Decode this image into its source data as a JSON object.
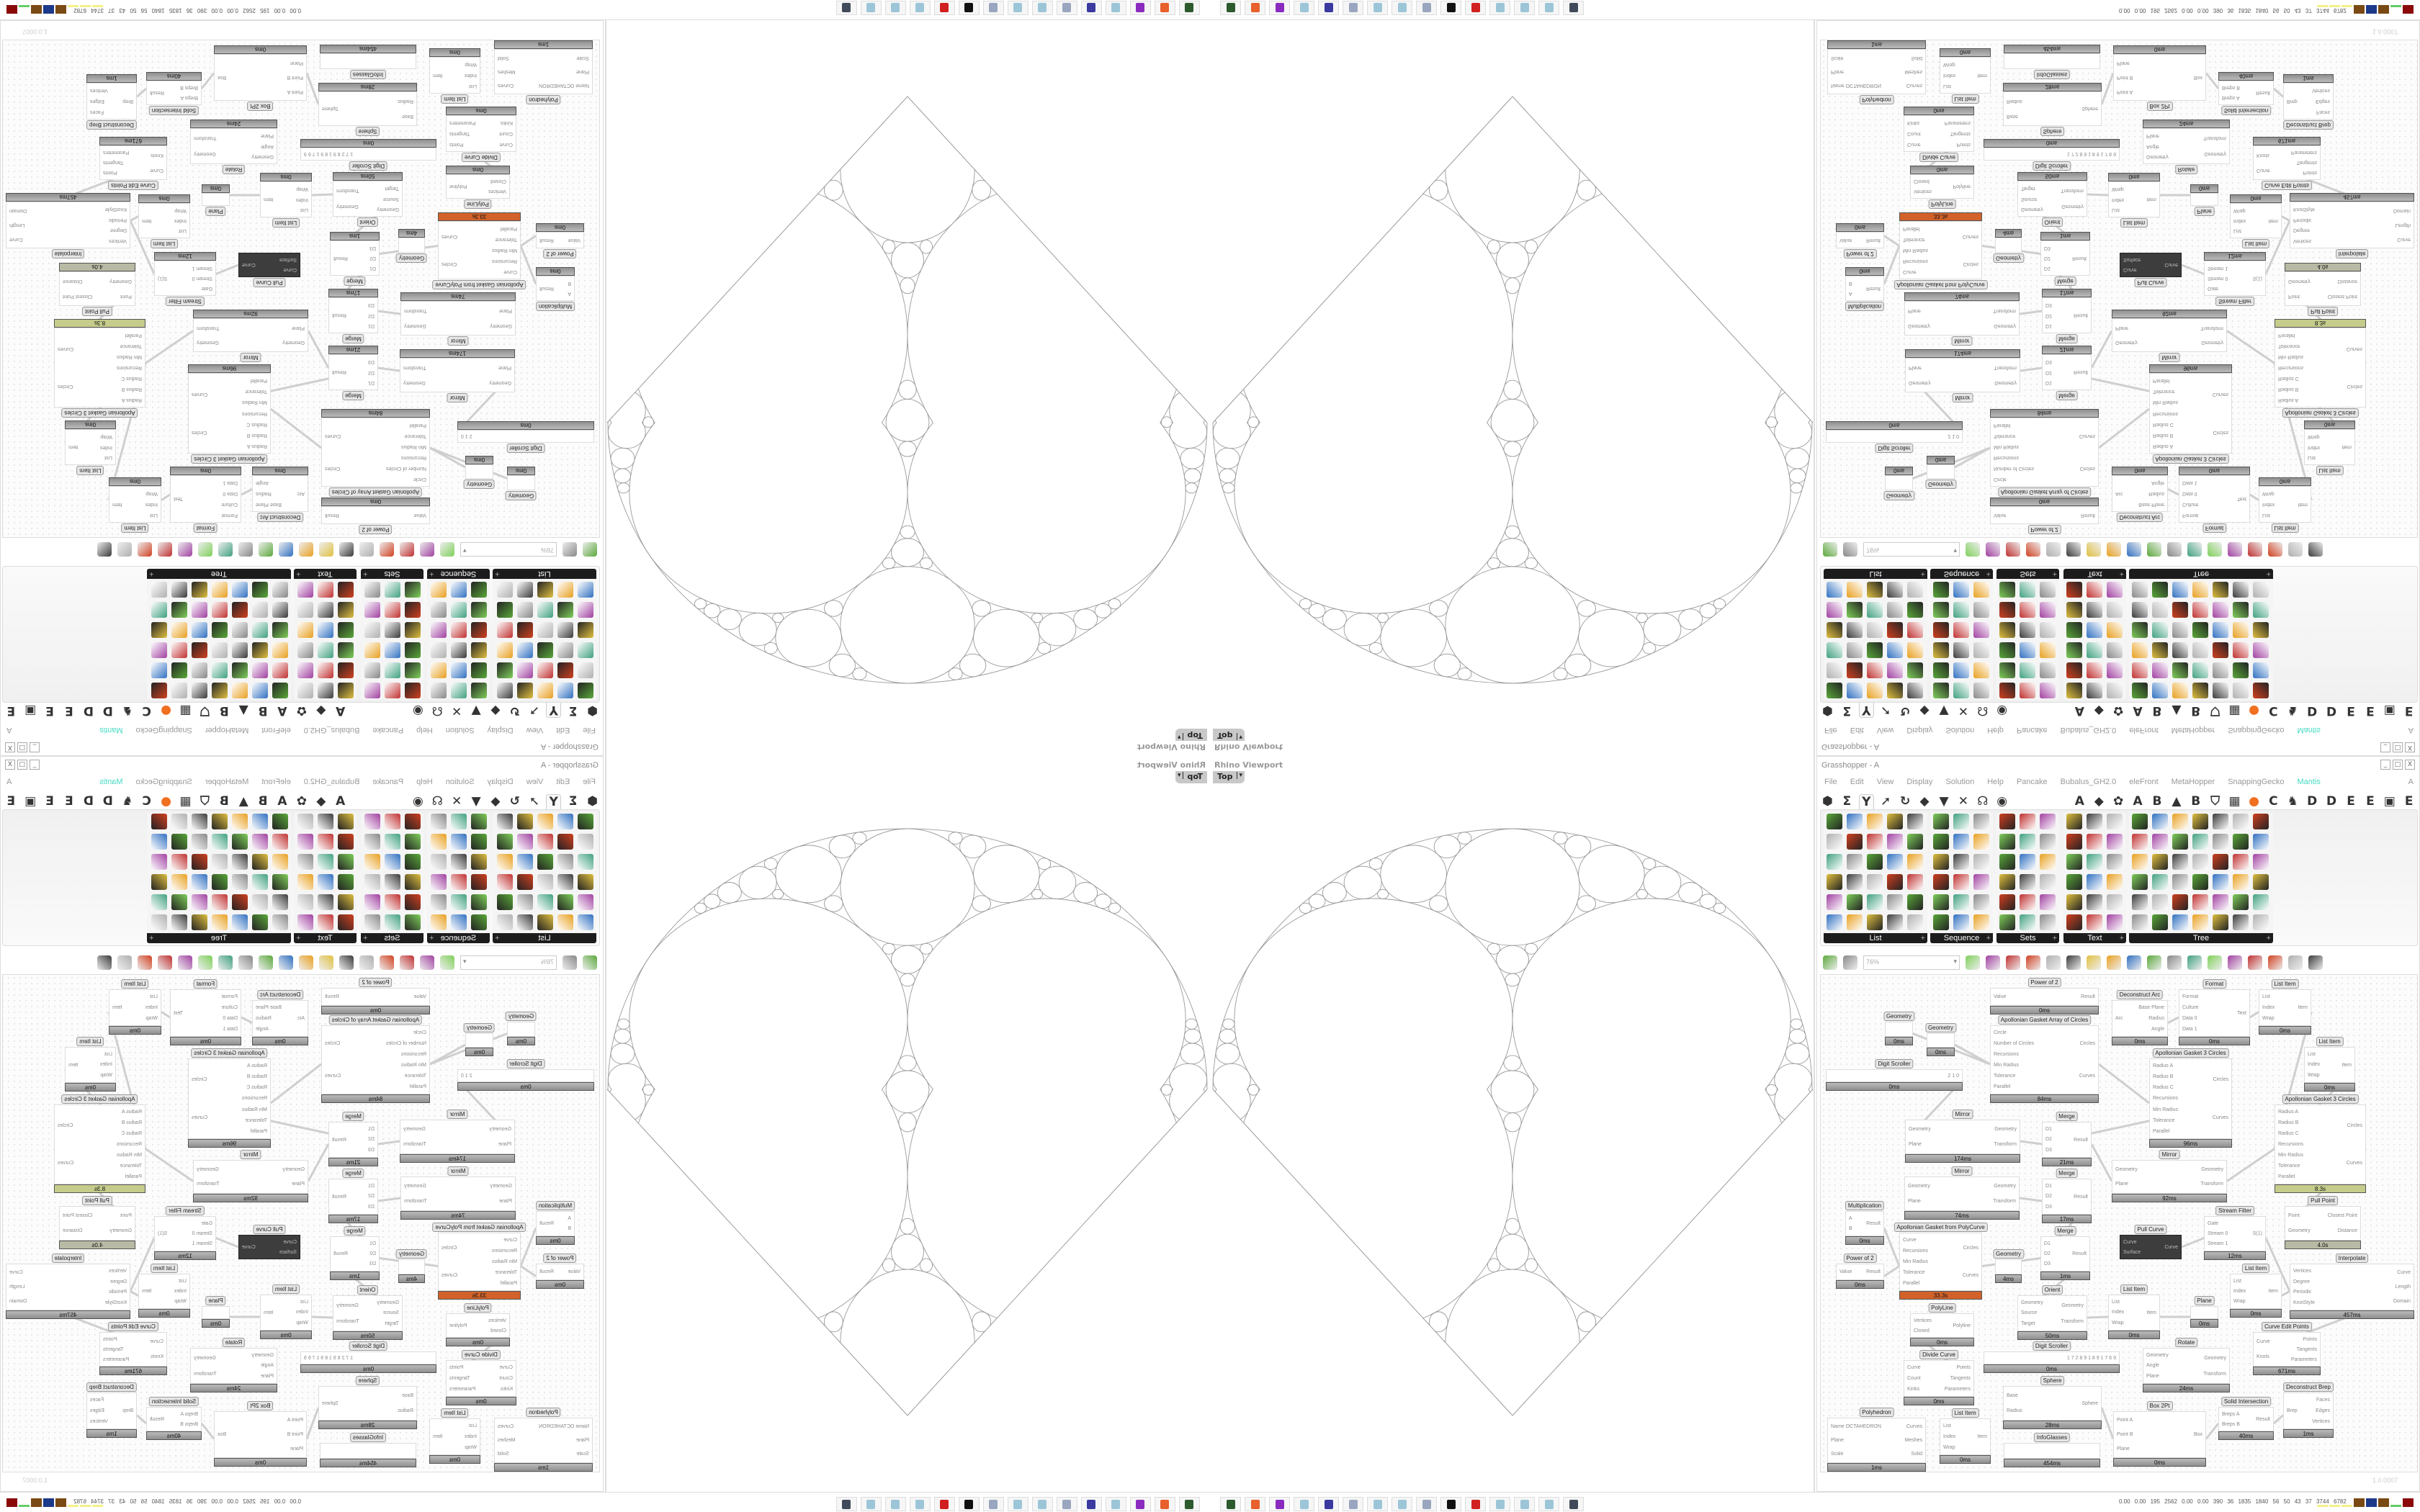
{
  "viewport": {
    "label": "Rhino Viewport",
    "view": "Top",
    "view_arrow": "▾"
  },
  "grasshopper": {
    "title": "Grasshopper - A",
    "window_buttons": [
      "_",
      "□",
      "X"
    ],
    "menu": [
      "File",
      "Edit",
      "View",
      "Display",
      "Solution",
      "Help",
      "Pancake",
      "Bubalus_GH2.0",
      "eleFront",
      "MetaHopper",
      "SnappingGecko",
      "Mantis"
    ],
    "menu_right": "A",
    "tabs": [
      {
        "icon": "params-icon",
        "g": "⬢"
      },
      {
        "icon": "maths-icon",
        "g": "Σ"
      },
      {
        "icon": "sets-icon",
        "g": "Y",
        "selected": true
      },
      {
        "icon": "vector-icon",
        "g": "➚"
      },
      {
        "icon": "curve-icon",
        "g": "↻"
      },
      {
        "icon": "surface-icon",
        "g": "◆"
      },
      {
        "icon": "mesh-icon",
        "g": "▼"
      },
      {
        "icon": "intersect-icon",
        "g": "✕"
      },
      {
        "icon": "transform-icon",
        "g": "☊"
      },
      {
        "icon": "display-icon",
        "g": "◉"
      },
      {
        "icon": "spacer",
        "g": ""
      },
      {
        "icon": "spacer",
        "g": ""
      },
      {
        "icon": "spacer",
        "g": ""
      },
      {
        "letter": "A"
      },
      {
        "icon": "plugin-icon",
        "g": "◆"
      },
      {
        "icon": "plugin-icon",
        "g": "✿"
      },
      {
        "letter": "A"
      },
      {
        "letter": "B"
      },
      {
        "icon": "plugin-icon",
        "g": "▲"
      },
      {
        "letter": "B"
      },
      {
        "icon": "shield-icon",
        "g": "⛉"
      },
      {
        "icon": "grid-icon",
        "g": "▦"
      },
      {
        "icon": "orange-dot-icon",
        "g": "●"
      },
      {
        "letter": "C"
      },
      {
        "icon": "bird-icon",
        "g": "♞"
      },
      {
        "letter": "D"
      },
      {
        "letter": "D"
      },
      {
        "letter": "E"
      },
      {
        "letter": "E"
      },
      {
        "icon": "frame-icon",
        "g": "▣"
      },
      {
        "letter": "E"
      }
    ],
    "ribbon_groups": [
      "List",
      "Sequence",
      "Sets",
      "Text",
      "Tree"
    ],
    "ribbon_group_expander": "+",
    "zoom": "76%",
    "canvas_tools": [
      "new-file-icon",
      "save-icon",
      "zoom-box",
      "zoom-extents-icon",
      "preview-eye-icon",
      "sketch-pen-icon",
      "cluster-icon",
      "email-icon",
      "gha-icon",
      "document-icon",
      "search-icon",
      "box-help-icon",
      "bulb-icon",
      "wires-icon",
      "mesh-preview-icon",
      "wireframe-icon",
      "shaded-red-icon",
      "teal-icon",
      "green-icon",
      "sphere-icon",
      "blue-sphere-icon"
    ],
    "version": "1.0.0007",
    "nodes": [
      {
        "t": "Power of 2",
        "in": [
          "Value"
        ],
        "out": [
          "Result"
        ],
        "time": "0ms"
      },
      {
        "t": "Apollonian Gasket Array of Circles",
        "in": [
          "Circle",
          "Number of Circles",
          "Recursions",
          "Min Radius",
          "Tolerance",
          "Parallel"
        ],
        "out": [
          "Circles",
          "Curves"
        ],
        "time": "84ms"
      },
      {
        "t": "Geometry",
        "in": [],
        "out": [],
        "time": "0ms"
      },
      {
        "t": "Geometry",
        "in": [],
        "out": [],
        "time": "0ms"
      },
      {
        "t": "Digit Scroller",
        "in": [],
        "out": [
          "2 1 0"
        ],
        "time": "0ms"
      },
      {
        "t": "Deconstruct Arc",
        "in": [
          "Arc"
        ],
        "out": [
          "Base Plane",
          "Radius",
          "Angle"
        ],
        "time": "0ms"
      },
      {
        "t": "Format",
        "in": [
          "Format",
          "Culture",
          "Data 0",
          "Data 1"
        ],
        "out": [
          "Text"
        ],
        "time": "0ms"
      },
      {
        "t": "List Item",
        "in": [
          "List",
          "Index",
          "Wrap"
        ],
        "out": [
          "Item"
        ],
        "time": "0ms"
      },
      {
        "t": "List Item",
        "in": [
          "List",
          "Index",
          "Wrap"
        ],
        "out": [
          "Item"
        ],
        "time": "0ms"
      },
      {
        "t": "Apollonian Gasket 3 Circles",
        "in": [
          "Radius A",
          "Radius B",
          "Radius C",
          "Recursions",
          "Min Radius",
          "Tolerance",
          "Parallel"
        ],
        "out": [
          "Circles",
          "Curves"
        ],
        "time": "96ms"
      },
      {
        "t": "Apollonian Gasket 3 Circles",
        "in": [
          "Radius A",
          "Radius B",
          "Radius C",
          "Recursions",
          "Min Radius",
          "Tolerance",
          "Parallel"
        ],
        "out": [
          "Circles",
          "Curves"
        ],
        "time": "8.3s",
        "state": "warn"
      },
      {
        "t": "Mirror",
        "in": [
          "Geometry",
          "Plane"
        ],
        "out": [
          "Geometry",
          "Transform"
        ],
        "time": "174ms"
      },
      {
        "t": "Merge",
        "in": [
          "D1",
          "D2",
          "D3"
        ],
        "out": [
          "Result"
        ],
        "time": "21ms"
      },
      {
        "t": "Mirror",
        "in": [
          "Geometry",
          "Plane"
        ],
        "out": [
          "Geometry",
          "Transform"
        ],
        "time": "74ms"
      },
      {
        "t": "Merge",
        "in": [
          "D1",
          "D2",
          "D3"
        ],
        "out": [
          "Result"
        ],
        "time": "17ms"
      },
      {
        "t": "Mirror",
        "in": [
          "Geometry",
          "Plane"
        ],
        "out": [
          "Geometry",
          "Transform"
        ],
        "time": "92ms"
      },
      {
        "t": "Multiplication",
        "in": [
          "A",
          "B"
        ],
        "out": [
          "Result"
        ],
        "time": "0ms"
      },
      {
        "t": "Apollonian Gasket from PolyCurve",
        "in": [
          "Curve",
          "Recursions",
          "Min Radius",
          "Tolerance",
          "Parallel"
        ],
        "out": [
          "Circles",
          "Curves"
        ],
        "time": "33.3s",
        "state": "slow"
      },
      {
        "t": "Power of 2",
        "in": [
          "Value"
        ],
        "out": [
          "Result"
        ],
        "time": "0ms"
      },
      {
        "t": "Geometry",
        "in": [],
        "out": [],
        "time": "4ms"
      },
      {
        "t": "Merge",
        "in": [
          "D1",
          "D2",
          "D3"
        ],
        "out": [
          "Result"
        ],
        "time": "1ms"
      },
      {
        "t": "Pull Curve",
        "in": [
          "Curve",
          "Surface"
        ],
        "out": [
          "Curve"
        ],
        "time": "",
        "state": "dark"
      },
      {
        "t": "Stream Filter",
        "in": [
          "Gate",
          "Stream 0",
          "Stream 1"
        ],
        "out": [
          "S(1)"
        ],
        "time": "12ms"
      },
      {
        "t": "Pull Point",
        "in": [
          "Point",
          "Geometry"
        ],
        "out": [
          "Closest Point",
          "Distance"
        ],
        "time": "4.0s",
        "state": "warn2"
      },
      {
        "t": "Interpolate",
        "in": [
          "Vertices",
          "Degree",
          "Periodic",
          "KnotStyle"
        ],
        "out": [
          "Curve",
          "Length",
          "Domain"
        ],
        "time": "457ms"
      },
      {
        "t": "List Item",
        "in": [
          "List",
          "Index",
          "Wrap"
        ],
        "out": [
          "Item"
        ],
        "time": "0ms"
      },
      {
        "t": "Orient",
        "in": [
          "Geometry",
          "Source",
          "Target"
        ],
        "out": [
          "Geometry",
          "Transform"
        ],
        "time": "50ms"
      },
      {
        "t": "List Item",
        "in": [
          "List",
          "Index",
          "Wrap"
        ],
        "out": [
          "Item"
        ],
        "time": "0ms"
      },
      {
        "t": "Plane",
        "in": [],
        "out": [],
        "time": "0ms"
      },
      {
        "t": "PolyLine",
        "in": [
          "Vertices",
          "Closed"
        ],
        "out": [
          "Polyline"
        ],
        "time": "0ms"
      },
      {
        "t": "Curve Edit Points",
        "in": [
          "Curve",
          "Knots"
        ],
        "out": [
          "Points",
          "Tangents",
          "Parameters"
        ],
        "time": "671ms"
      },
      {
        "t": "Digit Scroller",
        "in": [],
        "out": [
          "1 7 2 8 9 1 8 9 1 7 6 9"
        ],
        "time": "0ms"
      },
      {
        "t": "Rotate",
        "in": [
          "Geometry",
          "Angle",
          "Plane"
        ],
        "out": [
          "Geometry",
          "Transform"
        ],
        "time": "24ms"
      },
      {
        "t": "Divide Curve",
        "in": [
          "Curve",
          "Count",
          "Kinks"
        ],
        "out": [
          "Points",
          "Tangents",
          "Parameters"
        ],
        "time": "0ms"
      },
      {
        "t": "Sphere",
        "in": [
          "Base",
          "Radius"
        ],
        "out": [
          "Sphere"
        ],
        "time": "28ms"
      },
      {
        "t": "Deconstruct Brep",
        "in": [
          "Brep"
        ],
        "out": [
          "Faces",
          "Edges",
          "Vertices"
        ],
        "time": "1ms"
      },
      {
        "t": "Solid Intersection",
        "in": [
          "Breps A",
          "Breps B"
        ],
        "out": [
          "Result"
        ],
        "time": "40ms"
      },
      {
        "t": "Box 2Pt",
        "in": [
          "Point A",
          "Point B",
          "Plane"
        ],
        "out": [
          "Box"
        ],
        "time": "0ms"
      },
      {
        "t": "Polyhedron",
        "in": [
          "Name  OCTAHEDRON",
          "Plane",
          "Scale"
        ],
        "out": [
          "Curves",
          "Meshes",
          "Solid"
        ],
        "time": "1ms"
      },
      {
        "t": "List Item",
        "in": [
          "List",
          "Index",
          "Wrap"
        ],
        "out": [
          "Item"
        ],
        "time": "0ms"
      },
      {
        "t": "InfoGlasses",
        "in": [],
        "out": [],
        "time": "454ms"
      }
    ]
  },
  "taskbar": {
    "icons": [
      {
        "name": "terminal-icon",
        "color": "#2d5a2d"
      },
      {
        "name": "firefox-icon",
        "color": "#e8602c"
      },
      {
        "name": "app-purple-icon",
        "color": "#8a2bbf"
      },
      {
        "name": "notepad-icon",
        "color": "#9cc6d8"
      },
      {
        "name": "floppy-64-icon",
        "color": "#3a3aa0"
      },
      {
        "name": "scroll-icon",
        "color": "#9aa6c0"
      },
      {
        "name": "notepad-icon",
        "color": "#9cc6d8"
      },
      {
        "name": "notepad-icon",
        "color": "#9cc6d8"
      },
      {
        "name": "scroll-icon",
        "color": "#9aa6c0"
      },
      {
        "name": "rhino-icon",
        "color": "#111111"
      },
      {
        "name": "red-gear-icon",
        "color": "#d02020"
      },
      {
        "name": "notepad-icon",
        "color": "#9cc6d8"
      },
      {
        "name": "notepad-icon",
        "color": "#9cc6d8"
      },
      {
        "name": "notepad-icon",
        "color": "#9cc6d8"
      },
      {
        "name": "monitor-icon",
        "color": "#404a5a"
      }
    ],
    "stats": "0.00 0.00 195 2562 0.00 0.00 390 36 1835 1840 56 50 43 37 3744 6782",
    "meter_colors": [
      "#f4f08a",
      "#f4f08a",
      "#f4f08a",
      "#7a4a14",
      "#1d3a8a",
      "#7a4a14",
      "#66cc66",
      "#8a0a0a"
    ]
  },
  "colors": {
    "gasket_stroke": "#9a9a9a",
    "accent_menu": "#45d9c4",
    "slow_component": "#d2622a",
    "warn_component": "#c5cc8c"
  }
}
